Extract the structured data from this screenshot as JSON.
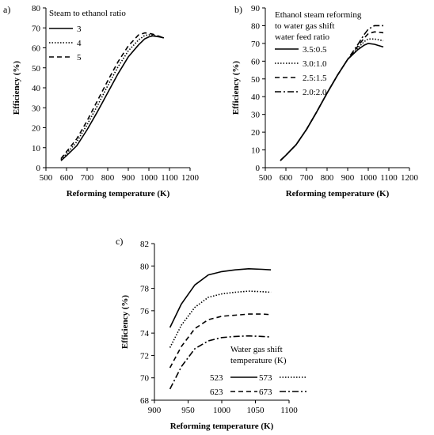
{
  "chart_data": [
    {
      "id": "a",
      "panel_label": "a)",
      "type": "line",
      "xlabel": "Reforming temperature (K)",
      "ylabel": "Efficiency (%)",
      "xlim": [
        500,
        1200
      ],
      "ylim": [
        0,
        80
      ],
      "xticks": [
        500,
        600,
        700,
        800,
        900,
        1000,
        1100,
        1200
      ],
      "yticks": [
        0,
        10,
        20,
        30,
        40,
        50,
        60,
        70,
        80
      ],
      "grid": false,
      "legend": {
        "title": "Steam to ethanol ratio",
        "placement": "top-left"
      },
      "series": [
        {
          "name": "3",
          "dash": "solid",
          "x": [
            573,
            600,
            650,
            700,
            750,
            800,
            850,
            900,
            950,
            980,
            1000,
            1020,
            1050,
            1073
          ],
          "y": [
            3.5,
            6,
            11,
            19,
            28,
            37.5,
            47,
            55.5,
            61.5,
            64.5,
            65.5,
            66,
            65.5,
            65
          ]
        },
        {
          "name": "4",
          "dash": "dotted",
          "x": [
            573,
            600,
            650,
            700,
            750,
            800,
            850,
            900,
            950,
            980,
            1000,
            1020,
            1050,
            1073
          ],
          "y": [
            4,
            7,
            13,
            21.5,
            31,
            41,
            50.5,
            58.5,
            64,
            66.2,
            66.5,
            66.3,
            65.6,
            65
          ]
        },
        {
          "name": "5",
          "dash": "dashed",
          "x": [
            573,
            600,
            650,
            700,
            750,
            800,
            850,
            900,
            950,
            980,
            1000,
            1020,
            1050,
            1073
          ],
          "y": [
            4.5,
            8,
            14.5,
            23.5,
            33.5,
            43.5,
            53,
            61,
            66.5,
            67.5,
            67.3,
            66.8,
            65.8,
            65
          ]
        }
      ]
    },
    {
      "id": "b",
      "panel_label": "b)",
      "type": "line",
      "xlabel": "Reforming temperature (K)",
      "ylabel": "Efficiency (%)",
      "xlim": [
        500,
        1200
      ],
      "ylim": [
        0,
        90
      ],
      "xticks": [
        500,
        600,
        700,
        800,
        900,
        1000,
        1100,
        1200
      ],
      "yticks": [
        0,
        10,
        20,
        30,
        40,
        50,
        60,
        70,
        80,
        90
      ],
      "grid": false,
      "legend": {
        "title": [
          "Ethanol steam reforming",
          "to water gas shift",
          "water feed ratio"
        ],
        "placement": "top-left"
      },
      "series": [
        {
          "name": "3.5:0.5",
          "dash": "solid",
          "x": [
            573,
            600,
            650,
            700,
            750,
            800,
            850,
            900,
            950,
            980,
            1000,
            1030,
            1073
          ],
          "y": [
            4,
            7,
            13,
            21.5,
            31.5,
            42,
            52,
            61,
            66.5,
            69,
            70,
            69.5,
            68
          ]
        },
        {
          "name": "3.0:1.0",
          "dash": "dotted",
          "x": [
            573,
            600,
            650,
            700,
            750,
            800,
            850,
            900,
            950,
            980,
            1000,
            1030,
            1073
          ],
          "y": [
            4,
            7,
            13,
            21.5,
            31.5,
            42,
            52,
            61,
            67.5,
            71,
            72.5,
            72.5,
            71.5
          ]
        },
        {
          "name": "2.5:1.5",
          "dash": "dashed",
          "x": [
            573,
            600,
            650,
            700,
            750,
            800,
            850,
            900,
            950,
            980,
            1000,
            1030,
            1073
          ],
          "y": [
            4,
            7,
            13,
            21.5,
            31.5,
            42,
            52,
            61,
            68.5,
            73,
            75.5,
            76.5,
            76
          ]
        },
        {
          "name": "2.0:2.0",
          "dash": "dashdot",
          "x": [
            573,
            600,
            650,
            700,
            750,
            800,
            850,
            900,
            950,
            980,
            1000,
            1030,
            1073
          ],
          "y": [
            4,
            7,
            13,
            21.5,
            31.5,
            42,
            52,
            61,
            69.5,
            75,
            78,
            80,
            80
          ]
        }
      ]
    },
    {
      "id": "c",
      "panel_label": "c)",
      "type": "line",
      "xlabel": "Reforming temperature (K)",
      "ylabel": "Efficiency (%)",
      "xlim": [
        900,
        1100
      ],
      "ylim": [
        68,
        82
      ],
      "xticks": [
        900,
        950,
        1000,
        1050,
        1100
      ],
      "yticks": [
        68,
        70,
        72,
        74,
        76,
        78,
        80,
        82
      ],
      "grid": false,
      "legend": {
        "title": [
          "Water gas shift",
          "temperature (K)"
        ],
        "placement": "bottom-right",
        "columns": 2
      },
      "series": [
        {
          "name": "523",
          "dash": "solid",
          "x": [
            923,
            940,
            960,
            980,
            1000,
            1020,
            1040,
            1060,
            1073
          ],
          "y": [
            74.5,
            76.6,
            78.3,
            79.2,
            79.5,
            79.65,
            79.75,
            79.7,
            79.65
          ]
        },
        {
          "name": "573",
          "dash": "dotted",
          "x": [
            923,
            940,
            960,
            980,
            1000,
            1020,
            1040,
            1060,
            1073
          ],
          "y": [
            72.7,
            74.7,
            76.3,
            77.2,
            77.5,
            77.65,
            77.75,
            77.7,
            77.65
          ]
        },
        {
          "name": "623",
          "dash": "dashed",
          "x": [
            923,
            940,
            960,
            980,
            1000,
            1020,
            1040,
            1060,
            1073
          ],
          "y": [
            70.9,
            72.8,
            74.4,
            75.2,
            75.5,
            75.6,
            75.7,
            75.7,
            75.65
          ]
        },
        {
          "name": "673",
          "dash": "dashdot",
          "x": [
            923,
            940,
            960,
            980,
            1000,
            1020,
            1040,
            1060,
            1073
          ],
          "y": [
            69,
            71,
            72.6,
            73.3,
            73.6,
            73.7,
            73.75,
            73.7,
            73.65
          ]
        }
      ]
    }
  ]
}
